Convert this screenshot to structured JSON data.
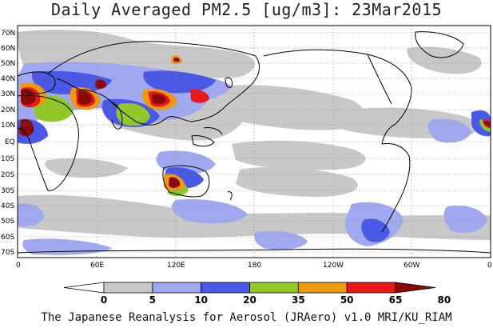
{
  "title": "Daily Averaged PM2.5 [ug/m3]: 23Mar2015",
  "footer": "The Japanese Reanalysis for Aerosol (JRAero) v1.0 MRI/KU_RIAM",
  "lat_labels": [
    "70N",
    "60N",
    "50N",
    "40N",
    "30N",
    "20N",
    "10N",
    "EQ",
    "10S",
    "20S",
    "30S",
    "40S",
    "50S",
    "60S",
    "70S"
  ],
  "lon_labels": [
    "0",
    "60E",
    "120E",
    "180",
    "120W",
    "60W",
    "0"
  ],
  "colorbar": {
    "ticks": [
      "0",
      "5",
      "10",
      "20",
      "35",
      "50",
      "65",
      "80"
    ],
    "colors": [
      "#ffffff",
      "#c8c8c8",
      "#a0a8f0",
      "#4a58e8",
      "#90c828",
      "#f09810",
      "#e81818",
      "#8a0a0a"
    ]
  },
  "palette": {
    "low": "#c8c8c8",
    "light_blue": "#a0a8f0",
    "blue": "#4a58e8",
    "green": "#90c828",
    "orange": "#f09810",
    "red": "#e81818",
    "maroon": "#8a0a0a"
  }
}
